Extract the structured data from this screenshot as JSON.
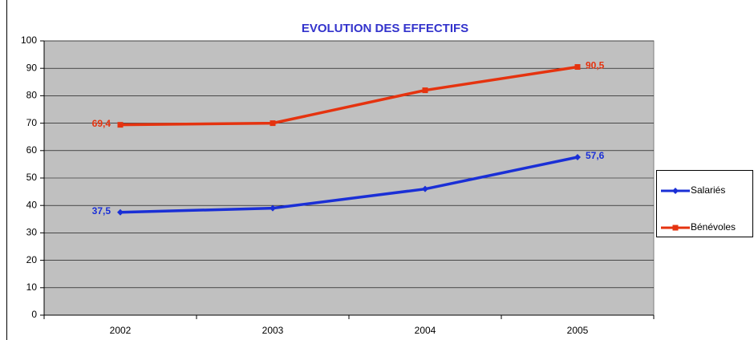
{
  "chart_data": {
    "type": "line",
    "title": "EVOLUTION DES EFFECTIFS",
    "categories": [
      "2002",
      "2003",
      "2004",
      "2005"
    ],
    "series": [
      {
        "name": "Salariés",
        "color": "#1a2fd6",
        "marker": "diamond",
        "values": [
          37.5,
          39,
          46,
          57.6
        ],
        "value_labels": [
          "37,5",
          null,
          null,
          "57,6"
        ]
      },
      {
        "name": "Bénévoles",
        "color": "#e5330f",
        "marker": "square",
        "values": [
          69.4,
          70,
          82,
          90.5
        ],
        "value_labels": [
          "69,4",
          null,
          null,
          "90,5"
        ]
      }
    ],
    "ylim": [
      0,
      100
    ],
    "yticks": [
      0,
      10,
      20,
      30,
      40,
      50,
      60,
      70,
      80,
      90,
      100
    ],
    "grid": true,
    "legend": "right"
  }
}
